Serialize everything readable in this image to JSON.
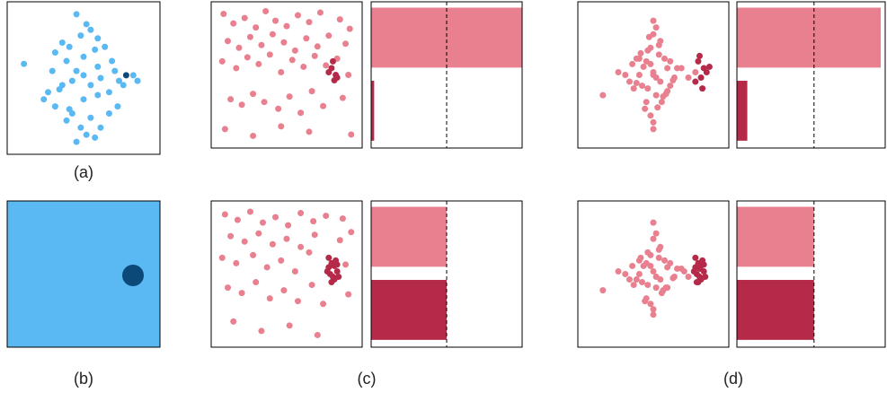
{
  "panel_labels": [
    "(a)",
    "(b)",
    "(c)",
    "(d)"
  ],
  "chart_data": [
    {
      "type": "scatter",
      "xlim": [
        0,
        100
      ],
      "ylim": [
        0,
        100
      ],
      "series": [
        {
          "color": "#5ab8f2",
          "x": [
            8,
            45,
            52,
            48,
            55,
            60,
            40,
            35,
            30,
            28,
            38,
            45,
            50,
            58,
            65,
            70,
            72,
            75,
            62,
            55,
            42,
            33,
            25,
            22,
            30,
            40,
            50,
            60,
            68,
            74,
            78,
            85,
            88,
            55,
            48,
            42,
            38,
            52,
            62,
            68,
            45,
            58,
            35,
            50,
            60
          ],
          "y": [
            60,
            95,
            88,
            80,
            84,
            78,
            72,
            75,
            68,
            55,
            62,
            55,
            65,
            70,
            72,
            62,
            55,
            48,
            50,
            45,
            48,
            42,
            40,
            35,
            30,
            28,
            35,
            38,
            40,
            30,
            45,
            52,
            48,
            22,
            15,
            25,
            20,
            10,
            15,
            25,
            5,
            8,
            45,
            52,
            58
          ]
        },
        {
          "color": "#0b4a78",
          "x": [
            80
          ],
          "y": [
            52
          ]
        }
      ]
    },
    {
      "type": "scatter",
      "xlim": [
        0,
        100
      ],
      "ylim": [
        0,
        100
      ],
      "series": [
        {
          "color": "#e8808f",
          "x": [
            5,
            12,
            20,
            28,
            35,
            42,
            50,
            58,
            66,
            74,
            88,
            95,
            8,
            16,
            24,
            32,
            40,
            48,
            56,
            64,
            72,
            80,
            92,
            4,
            14,
            22,
            30,
            38,
            46,
            54,
            62,
            70,
            78,
            86,
            94,
            10,
            18,
            26,
            34,
            44,
            52,
            60,
            68,
            76,
            90,
            6,
            26,
            46,
            66,
            96
          ],
          "y": [
            95,
            88,
            92,
            85,
            97,
            90,
            86,
            94,
            89,
            96,
            91,
            84,
            75,
            70,
            78,
            72,
            80,
            74,
            68,
            77,
            71,
            79,
            73,
            60,
            55,
            63,
            58,
            65,
            52,
            61,
            56,
            64,
            57,
            62,
            50,
            32,
            28,
            36,
            30,
            25,
            34,
            22,
            38,
            27,
            33,
            10,
            5,
            12,
            8,
            6
          ]
        },
        {
          "color": "#b52a48",
          "x": [
            82,
            85,
            80,
            84,
            83,
            86
          ],
          "y": [
            55,
            50,
            52,
            46,
            60,
            48
          ]
        }
      ]
    },
    {
      "type": "barh",
      "categories": [
        null,
        null
      ],
      "values": [
        1.0,
        0.02
      ],
      "colors": [
        "#e8808f",
        "#b52a48"
      ],
      "xlim": [
        0,
        1
      ],
      "reference": 0.5
    },
    {
      "type": "scatter",
      "xlim": [
        0,
        100
      ],
      "ylim": [
        0,
        100
      ],
      "series": [
        {
          "color": "#e8808f",
          "x": [
            50,
            45,
            55,
            40,
            60,
            48,
            52,
            35,
            65,
            42,
            58,
            46,
            54,
            30,
            70,
            38,
            62,
            50,
            44,
            56,
            25,
            75,
            48,
            52,
            40,
            60,
            33,
            67,
            50,
            46,
            54,
            43,
            57,
            36,
            64,
            50,
            45,
            55,
            14,
            80,
            48,
            52,
            41,
            59,
            50,
            38,
            62,
            47,
            53,
            50
          ],
          "y": [
            52,
            60,
            45,
            50,
            55,
            70,
            35,
            58,
            48,
            42,
            62,
            40,
            65,
            50,
            55,
            44,
            60,
            80,
            25,
            30,
            52,
            48,
            20,
            85,
            62,
            38,
            45,
            55,
            10,
            68,
            72,
            56,
            34,
            40,
            46,
            90,
            30,
            75,
            35,
            52,
            58,
            48,
            66,
            36,
            15,
            62,
            42,
            78,
            26,
            50
          ]
        },
        {
          "color": "#b52a48",
          "x": [
            82,
            86,
            84,
            88,
            80,
            85,
            90,
            83
          ],
          "y": [
            60,
            55,
            48,
            52,
            45,
            40,
            56,
            64
          ]
        }
      ]
    },
    {
      "type": "barh",
      "categories": [
        null,
        null
      ],
      "values": [
        0.97,
        0.07
      ],
      "colors": [
        "#e8808f",
        "#b52a48"
      ],
      "xlim": [
        0,
        1
      ],
      "reference": 0.52
    },
    {
      "type": "scatter",
      "xlim": [
        0,
        100
      ],
      "ylim": [
        0,
        100
      ],
      "series": [
        {
          "color": "#e8808f",
          "x": [
            6,
            15,
            24,
            33,
            42,
            51,
            60,
            69,
            78,
            90,
            10,
            20,
            30,
            40,
            50,
            60,
            70,
            88,
            96,
            4,
            14,
            26,
            36,
            46,
            56,
            66,
            92,
            8,
            18,
            28,
            38,
            48,
            58,
            68,
            76,
            94,
            12,
            32,
            52,
            72
          ],
          "y": [
            94,
            90,
            96,
            88,
            92,
            86,
            95,
            89,
            93,
            91,
            78,
            74,
            80,
            72,
            76,
            70,
            79,
            75,
            81,
            62,
            58,
            64,
            55,
            60,
            52,
            66,
            57,
            40,
            36,
            44,
            32,
            38,
            30,
            42,
            28,
            35,
            15,
            8,
            12,
            5
          ]
        },
        {
          "color": "#b52a48",
          "x": [
            80,
            82,
            84,
            86,
            81,
            83,
            85,
            79,
            87,
            82,
            84,
            80,
            86
          ],
          "y": [
            55,
            58,
            56,
            52,
            50,
            48,
            60,
            52,
            48,
            44,
            46,
            62,
            57
          ]
        }
      ]
    },
    {
      "type": "barh",
      "categories": [
        null,
        null
      ],
      "values": [
        0.5,
        0.5
      ],
      "colors": [
        "#e8808f",
        "#b52a48"
      ],
      "xlim": [
        0,
        1
      ],
      "reference": 0.5
    },
    {
      "type": "scatter",
      "xlim": [
        0,
        100
      ],
      "ylim": [
        0,
        100
      ],
      "series": [
        {
          "color": "#e8808f",
          "x": [
            50,
            45,
            55,
            40,
            60,
            48,
            52,
            35,
            65,
            42,
            58,
            46,
            54,
            30,
            70,
            38,
            62,
            50,
            44,
            56,
            25,
            75,
            48,
            52,
            40,
            60,
            33,
            67,
            50,
            46,
            54,
            43,
            57,
            36,
            64,
            50,
            45,
            55,
            14,
            72,
            48,
            52,
            41,
            59,
            50
          ],
          "y": [
            52,
            58,
            46,
            50,
            55,
            64,
            40,
            56,
            48,
            44,
            60,
            42,
            62,
            50,
            54,
            46,
            58,
            76,
            30,
            36,
            52,
            48,
            28,
            80,
            60,
            40,
            46,
            54,
            20,
            66,
            68,
            56,
            38,
            42,
            47,
            88,
            32,
            70,
            38,
            52,
            56,
            48,
            62,
            40,
            24
          ]
        },
        {
          "color": "#b52a48",
          "x": [
            80,
            82,
            84,
            86,
            81,
            83,
            85,
            79,
            87,
            82,
            84,
            80,
            86,
            83,
            81
          ],
          "y": [
            55,
            58,
            56,
            52,
            50,
            48,
            60,
            52,
            48,
            44,
            46,
            62,
            57,
            54,
            44
          ]
        }
      ]
    },
    {
      "type": "barh",
      "categories": [
        null,
        null
      ],
      "values": [
        0.52,
        0.52
      ],
      "colors": [
        "#e8808f",
        "#b52a48"
      ],
      "xlim": [
        0,
        1
      ],
      "reference": 0.52
    }
  ]
}
